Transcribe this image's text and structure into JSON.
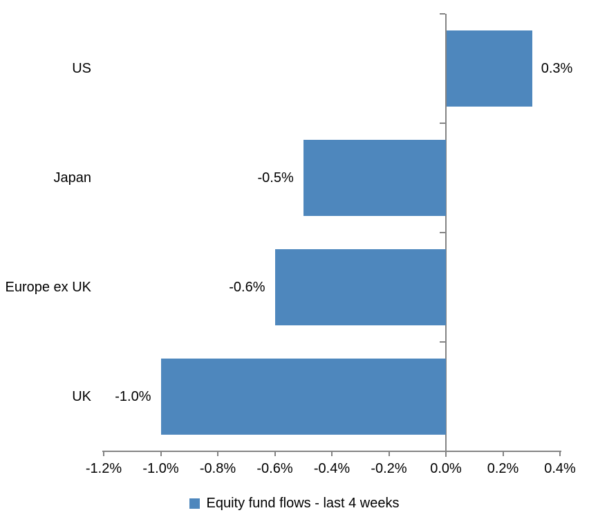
{
  "chart_data": {
    "type": "bar",
    "orientation": "horizontal",
    "title": "",
    "xlabel": "",
    "ylabel": "",
    "categories": [
      "US",
      "Japan",
      "Europe ex UK",
      "UK"
    ],
    "values": [
      0.3,
      -0.5,
      -0.6,
      -1.0
    ],
    "data_labels": [
      "0.3%",
      "-0.5%",
      "-0.6%",
      "-1.0%"
    ],
    "legend": "Equity fund flows - last 4 weeks",
    "legend_position": "bottom",
    "xlim": [
      -1.2,
      0.4
    ],
    "x_ticks": [
      -1.2,
      -1.0,
      -0.8,
      -0.6,
      -0.4,
      -0.2,
      0.0,
      0.2,
      0.4
    ],
    "x_tick_labels": [
      "-1.2%",
      "-1.0%",
      "-0.8%",
      "-0.6%",
      "-0.4%",
      "-0.2%",
      "0.0%",
      "0.2%",
      "0.4%"
    ],
    "grid": "off",
    "colors": {
      "bar": "#4E87BD",
      "axis": "#848484",
      "text": "#000000",
      "background": "#FFFFFF"
    }
  }
}
